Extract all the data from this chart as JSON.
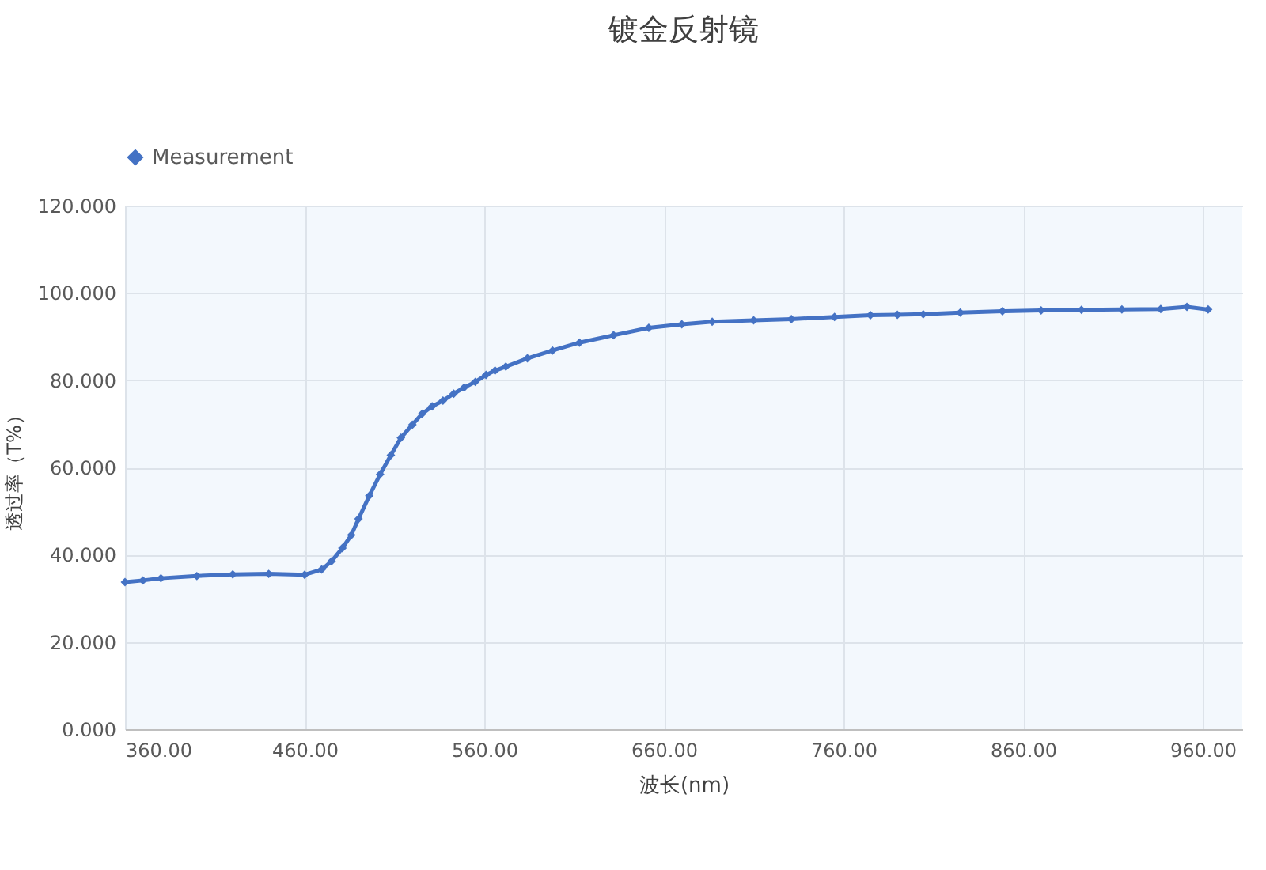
{
  "chart_data": {
    "type": "line",
    "title": "镀金反射镜",
    "xlabel": "波长(nm)",
    "ylabel": "透过率（T%）",
    "x": [
      360,
      370,
      380,
      400,
      420,
      440,
      460,
      469.5,
      475,
      481,
      486,
      490,
      496,
      502,
      508,
      513.6,
      520,
      525.4,
      531,
      537,
      543,
      548.8,
      555,
      561,
      566,
      572,
      584,
      598,
      613,
      632,
      651.6,
      670,
      686.9,
      710,
      731,
      755,
      775,
      790,
      804.4,
      825,
      848.5,
      870,
      892.5,
      915,
      936.6,
      951.2,
      963
    ],
    "series": [
      {
        "name": "Measurement",
        "color": "#4472c4",
        "values": [
          33.7,
          34.1,
          34.6,
          35.1,
          35.5,
          35.6,
          35.4,
          36.6,
          38.5,
          41.5,
          44.5,
          48.2,
          53.5,
          58.4,
          62.8,
          66.8,
          69.8,
          72.3,
          74,
          75.3,
          76.9,
          78.3,
          79.6,
          81.2,
          82.2,
          83.1,
          85,
          86.8,
          88.6,
          90.3,
          92,
          92.8,
          93.4,
          93.7,
          94,
          94.5,
          94.9,
          95,
          95.1,
          95.5,
          95.8,
          96,
          96.1,
          96.2,
          96.3,
          96.8,
          96.2
        ]
      }
    ],
    "xlim": [
      360,
      982
    ],
    "xticks": [
      {
        "value": 360,
        "label": "360.00"
      },
      {
        "value": 460,
        "label": "460.00"
      },
      {
        "value": 560,
        "label": "560.00"
      },
      {
        "value": 660,
        "label": "660.00"
      },
      {
        "value": 760,
        "label": "760.00"
      },
      {
        "value": 860,
        "label": "860.00"
      },
      {
        "value": 960,
        "label": "960.00"
      }
    ],
    "ylim": [
      0,
      120
    ],
    "yticks": [
      {
        "value": 0,
        "label": "0.000"
      },
      {
        "value": 20,
        "label": "20.000"
      },
      {
        "value": 40,
        "label": "40.000"
      },
      {
        "value": 60,
        "label": "60.000"
      },
      {
        "value": 80,
        "label": "80.000"
      },
      {
        "value": 100,
        "label": "100.000"
      },
      {
        "value": 120,
        "label": "120.000"
      }
    ],
    "grid": true,
    "legend": "top",
    "marker": "diamond",
    "line_style": "solid"
  }
}
